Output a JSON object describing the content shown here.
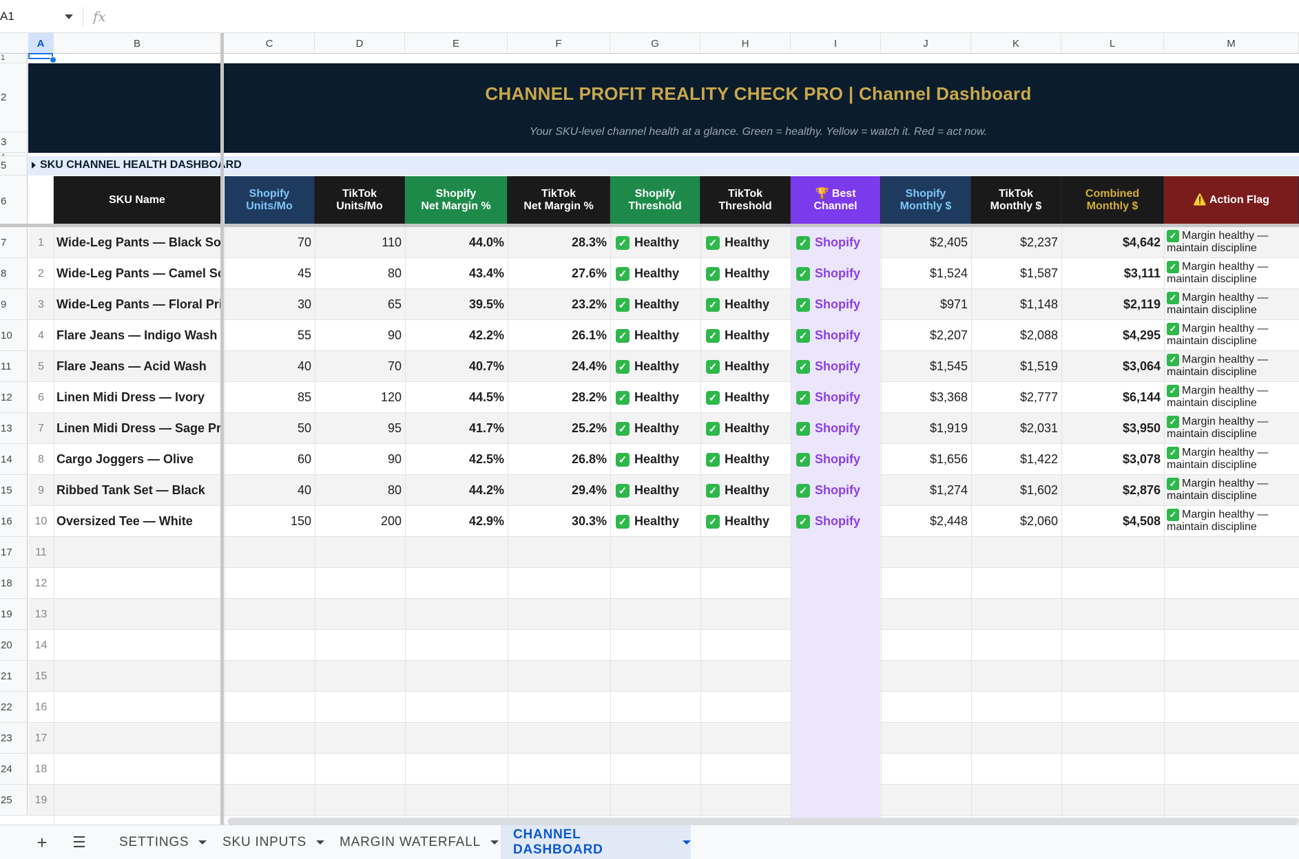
{
  "formula_bar": {
    "name_box": "A1",
    "fx_label": "fx"
  },
  "columns": [
    "A",
    "B",
    "C",
    "D",
    "E",
    "F",
    "G",
    "H",
    "I",
    "J",
    "K",
    "L",
    "M"
  ],
  "row_numbers": [
    "1",
    "2",
    "3",
    "4",
    "5",
    "6",
    "7",
    "8",
    "9",
    "10",
    "11",
    "12",
    "13",
    "14",
    "15",
    "16",
    "17",
    "18",
    "19",
    "20",
    "21",
    "22",
    "23",
    "24",
    "25"
  ],
  "banner": {
    "title": "CHANNEL PROFIT REALITY CHECK PRO  |  Channel Dashboard",
    "subtitle": "Your SKU-level channel health at a glance. Green = healthy. Yellow = watch it. Red = act now."
  },
  "section_title": "SKU CHANNEL HEALTH DASHBOARD",
  "headers": {
    "sku_name": "SKU Name",
    "shopify_units": [
      "Shopify",
      "Units/Mo"
    ],
    "tiktok_units": [
      "TikTok",
      "Units/Mo"
    ],
    "shopify_margin": [
      "Shopify",
      "Net Margin %"
    ],
    "tiktok_margin": [
      "TikTok",
      "Net Margin %"
    ],
    "shopify_threshold": [
      "Shopify",
      "Threshold"
    ],
    "tiktok_threshold": [
      "TikTok",
      "Threshold"
    ],
    "best_channel": [
      "🏆 Best",
      "Channel"
    ],
    "shopify_monthly": [
      "Shopify",
      "Monthly $"
    ],
    "tiktok_monthly": [
      "TikTok",
      "Monthly $"
    ],
    "combined_monthly": [
      "Combined",
      "Monthly $"
    ],
    "action_flag": "⚠️ Action Flag"
  },
  "rows": [
    {
      "idx": "1",
      "sku": "Wide-Leg Pants — Black Sol",
      "su": "70",
      "tu": "110",
      "sm": "44.0%",
      "tm": "28.3%",
      "st": "Healthy",
      "tt": "Healthy",
      "best": "Shopify",
      "smo": "$2,405",
      "tmo": "$2,237",
      "cmo": "$4,642",
      "action": "Margin healthy — maintain discipline"
    },
    {
      "idx": "2",
      "sku": "Wide-Leg Pants — Camel So",
      "su": "45",
      "tu": "80",
      "sm": "43.4%",
      "tm": "27.6%",
      "st": "Healthy",
      "tt": "Healthy",
      "best": "Shopify",
      "smo": "$1,524",
      "tmo": "$1,587",
      "cmo": "$3,111",
      "action": "Margin healthy — maintain discipline"
    },
    {
      "idx": "3",
      "sku": "Wide-Leg Pants — Floral Pri",
      "su": "30",
      "tu": "65",
      "sm": "39.5%",
      "tm": "23.2%",
      "st": "Healthy",
      "tt": "Healthy",
      "best": "Shopify",
      "smo": "$971",
      "tmo": "$1,148",
      "cmo": "$2,119",
      "action": "Margin healthy — maintain discipline"
    },
    {
      "idx": "4",
      "sku": "Flare Jeans — Indigo Wash",
      "su": "55",
      "tu": "90",
      "sm": "42.2%",
      "tm": "26.1%",
      "st": "Healthy",
      "tt": "Healthy",
      "best": "Shopify",
      "smo": "$2,207",
      "tmo": "$2,088",
      "cmo": "$4,295",
      "action": "Margin healthy — maintain discipline"
    },
    {
      "idx": "5",
      "sku": "Flare Jeans — Acid Wash",
      "su": "40",
      "tu": "70",
      "sm": "40.7%",
      "tm": "24.4%",
      "st": "Healthy",
      "tt": "Healthy",
      "best": "Shopify",
      "smo": "$1,545",
      "tmo": "$1,519",
      "cmo": "$3,064",
      "action": "Margin healthy — maintain discipline"
    },
    {
      "idx": "6",
      "sku": "Linen Midi Dress — Ivory",
      "su": "85",
      "tu": "120",
      "sm": "44.5%",
      "tm": "28.2%",
      "st": "Healthy",
      "tt": "Healthy",
      "best": "Shopify",
      "smo": "$3,368",
      "tmo": "$2,777",
      "cmo": "$6,144",
      "action": "Margin healthy — maintain discipline"
    },
    {
      "idx": "7",
      "sku": "Linen Midi Dress — Sage Pri",
      "su": "50",
      "tu": "95",
      "sm": "41.7%",
      "tm": "25.2%",
      "st": "Healthy",
      "tt": "Healthy",
      "best": "Shopify",
      "smo": "$1,919",
      "tmo": "$2,031",
      "cmo": "$3,950",
      "action": "Margin healthy — maintain discipline"
    },
    {
      "idx": "8",
      "sku": "Cargo Joggers — Olive",
      "su": "60",
      "tu": "90",
      "sm": "42.5%",
      "tm": "26.8%",
      "st": "Healthy",
      "tt": "Healthy",
      "best": "Shopify",
      "smo": "$1,656",
      "tmo": "$1,422",
      "cmo": "$3,078",
      "action": "Margin healthy — maintain discipline"
    },
    {
      "idx": "9",
      "sku": "Ribbed Tank Set — Black",
      "su": "40",
      "tu": "80",
      "sm": "44.2%",
      "tm": "29.4%",
      "st": "Healthy",
      "tt": "Healthy",
      "best": "Shopify",
      "smo": "$1,274",
      "tmo": "$1,602",
      "cmo": "$2,876",
      "action": "Margin healthy — maintain discipline"
    },
    {
      "idx": "10",
      "sku": "Oversized Tee — White",
      "su": "150",
      "tu": "200",
      "sm": "42.9%",
      "tm": "30.3%",
      "st": "Healthy",
      "tt": "Healthy",
      "best": "Shopify",
      "smo": "$2,448",
      "tmo": "$2,060",
      "cmo": "$4,508",
      "action": "Margin healthy — maintain discipline"
    }
  ],
  "empty_indices": [
    "11",
    "12",
    "13",
    "14",
    "15",
    "16",
    "17",
    "18",
    "19"
  ],
  "sheet_tabs": [
    {
      "label": "SETTINGS",
      "active": false
    },
    {
      "label": "SKU INPUTS",
      "active": false
    },
    {
      "label": "MARGIN WATERFALL",
      "active": false
    },
    {
      "label": "CHANNEL DASHBOARD",
      "active": true
    }
  ],
  "colors": {
    "banner_bg": "#0b1c2c",
    "banner_title": "#c9a84c",
    "shopify_units_hdr": "#1f3a5f",
    "shopify_green_hdr": "#1e8a4a",
    "tiktok_hdr": "#1a1a1a",
    "best_hdr": "#7c3aed",
    "combined_text": "#d4af37",
    "action_hdr": "#7b1c1c",
    "best_text": "#8a3fe8"
  }
}
